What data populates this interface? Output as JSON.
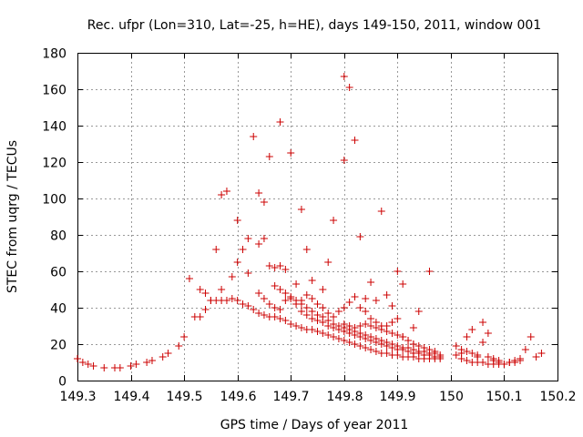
{
  "chart_data": {
    "type": "scatter",
    "title": "Rec. ufpr (Lon=310, Lat=-25, h=HE), days 149-150, 2011, window 001",
    "xlabel": "GPS time / Days of year 2011",
    "ylabel": "STEC from uqrg / TECUs",
    "xlim": [
      149.3,
      150.2
    ],
    "ylim": [
      0,
      180
    ],
    "xticks": [
      "149.3",
      "149.4",
      "149.5",
      "149.6",
      "149.7",
      "149.8",
      "149.9",
      "150",
      "150.1",
      "150.2"
    ],
    "yticks": [
      "0",
      "20",
      "40",
      "60",
      "80",
      "100",
      "120",
      "140",
      "160",
      "180"
    ],
    "grid": true,
    "marker": "+",
    "color": "#cc0000",
    "points": [
      [
        149.3,
        12
      ],
      [
        149.31,
        10
      ],
      [
        149.32,
        9
      ],
      [
        149.33,
        8
      ],
      [
        149.35,
        7
      ],
      [
        149.37,
        7
      ],
      [
        149.38,
        7
      ],
      [
        149.4,
        8
      ],
      [
        149.41,
        9
      ],
      [
        149.43,
        10
      ],
      [
        149.44,
        11
      ],
      [
        149.46,
        13
      ],
      [
        149.47,
        15
      ],
      [
        149.49,
        19
      ],
      [
        149.5,
        24
      ],
      [
        149.51,
        56
      ],
      [
        149.52,
        35
      ],
      [
        149.53,
        50
      ],
      [
        149.54,
        48
      ],
      [
        149.55,
        44
      ],
      [
        149.56,
        72
      ],
      [
        149.57,
        50
      ],
      [
        149.57,
        102
      ],
      [
        149.58,
        104
      ],
      [
        149.59,
        57
      ],
      [
        149.6,
        65
      ],
      [
        149.6,
        88
      ],
      [
        149.61,
        72
      ],
      [
        149.62,
        59
      ],
      [
        149.62,
        78
      ],
      [
        149.63,
        134
      ],
      [
        149.64,
        75
      ],
      [
        149.64,
        103
      ],
      [
        149.65,
        98
      ],
      [
        149.65,
        78
      ],
      [
        149.66,
        123
      ],
      [
        149.66,
        63
      ],
      [
        149.67,
        62
      ],
      [
        149.68,
        142
      ],
      [
        149.68,
        63
      ],
      [
        149.69,
        61
      ],
      [
        149.7,
        125
      ],
      [
        149.71,
        53
      ],
      [
        149.72,
        94
      ],
      [
        149.73,
        72
      ],
      [
        149.74,
        55
      ],
      [
        149.76,
        50
      ],
      [
        149.77,
        65
      ],
      [
        149.78,
        88
      ],
      [
        149.8,
        167
      ],
      [
        149.8,
        121
      ],
      [
        149.81,
        161
      ],
      [
        149.82,
        132
      ],
      [
        149.83,
        79
      ],
      [
        149.84,
        45
      ],
      [
        149.85,
        54
      ],
      [
        149.86,
        44
      ],
      [
        149.87,
        93
      ],
      [
        149.88,
        47
      ],
      [
        149.89,
        41
      ],
      [
        149.9,
        60
      ],
      [
        149.91,
        53
      ],
      [
        149.93,
        29
      ],
      [
        149.94,
        38
      ],
      [
        149.96,
        60
      ],
      [
        149.53,
        35
      ],
      [
        149.54,
        39
      ],
      [
        149.55,
        44
      ],
      [
        149.56,
        44
      ],
      [
        149.57,
        44
      ],
      [
        149.58,
        44
      ],
      [
        149.59,
        45
      ],
      [
        149.6,
        44
      ],
      [
        149.61,
        42
      ],
      [
        149.62,
        41
      ],
      [
        149.63,
        39
      ],
      [
        149.64,
        37
      ],
      [
        149.65,
        36
      ],
      [
        149.66,
        35
      ],
      [
        149.67,
        35
      ],
      [
        149.68,
        34
      ],
      [
        149.69,
        33
      ],
      [
        149.7,
        31
      ],
      [
        149.71,
        30
      ],
      [
        149.72,
        29
      ],
      [
        149.73,
        28
      ],
      [
        149.74,
        28
      ],
      [
        149.75,
        27
      ],
      [
        149.76,
        26
      ],
      [
        149.77,
        25
      ],
      [
        149.78,
        24
      ],
      [
        149.79,
        23
      ],
      [
        149.8,
        22
      ],
      [
        149.81,
        21
      ],
      [
        149.82,
        20
      ],
      [
        149.83,
        19
      ],
      [
        149.84,
        18
      ],
      [
        149.85,
        17
      ],
      [
        149.86,
        16
      ],
      [
        149.87,
        15
      ],
      [
        149.88,
        15
      ],
      [
        149.89,
        14
      ],
      [
        149.9,
        14
      ],
      [
        149.91,
        13
      ],
      [
        149.92,
        13
      ],
      [
        149.93,
        13
      ],
      [
        149.94,
        12
      ],
      [
        149.95,
        12
      ],
      [
        149.96,
        12
      ],
      [
        149.97,
        12
      ],
      [
        149.98,
        12
      ],
      [
        149.64,
        48
      ],
      [
        149.65,
        45
      ],
      [
        149.66,
        42
      ],
      [
        149.67,
        40
      ],
      [
        149.68,
        39
      ],
      [
        149.69,
        44
      ],
      [
        149.7,
        45
      ],
      [
        149.71,
        42
      ],
      [
        149.72,
        38
      ],
      [
        149.73,
        36
      ],
      [
        149.74,
        34
      ],
      [
        149.75,
        33
      ],
      [
        149.76,
        32
      ],
      [
        149.77,
        30
      ],
      [
        149.78,
        29
      ],
      [
        149.79,
        28
      ],
      [
        149.8,
        27
      ],
      [
        149.81,
        26
      ],
      [
        149.82,
        25
      ],
      [
        149.83,
        24
      ],
      [
        149.84,
        23
      ],
      [
        149.85,
        22
      ],
      [
        149.86,
        21
      ],
      [
        149.87,
        20
      ],
      [
        149.88,
        19
      ],
      [
        149.89,
        18
      ],
      [
        149.9,
        17
      ],
      [
        149.91,
        17
      ],
      [
        149.92,
        16
      ],
      [
        149.93,
        15
      ],
      [
        149.94,
        15
      ],
      [
        149.95,
        14
      ],
      [
        149.96,
        14
      ],
      [
        149.97,
        13
      ],
      [
        149.98,
        13
      ],
      [
        149.67,
        52
      ],
      [
        149.68,
        50
      ],
      [
        149.69,
        48
      ],
      [
        149.7,
        46
      ],
      [
        149.71,
        44
      ],
      [
        149.72,
        42
      ],
      [
        149.73,
        40
      ],
      [
        149.74,
        38
      ],
      [
        149.75,
        36
      ],
      [
        149.76,
        35
      ],
      [
        149.77,
        33
      ],
      [
        149.78,
        31
      ],
      [
        149.79,
        30
      ],
      [
        149.8,
        29
      ],
      [
        149.81,
        28
      ],
      [
        149.82,
        27
      ],
      [
        149.83,
        26
      ],
      [
        149.84,
        25
      ],
      [
        149.85,
        24
      ],
      [
        149.86,
        23
      ],
      [
        149.87,
        22
      ],
      [
        149.88,
        21
      ],
      [
        149.89,
        20
      ],
      [
        149.9,
        19
      ],
      [
        149.91,
        18
      ],
      [
        149.92,
        18
      ],
      [
        149.93,
        17
      ],
      [
        149.94,
        16
      ],
      [
        149.95,
        16
      ],
      [
        149.96,
        15
      ],
      [
        149.97,
        15
      ],
      [
        149.98,
        14
      ],
      [
        149.72,
        44
      ],
      [
        149.73,
        47
      ],
      [
        149.74,
        45
      ],
      [
        149.75,
        42
      ],
      [
        149.76,
        40
      ],
      [
        149.77,
        37
      ],
      [
        149.78,
        35
      ],
      [
        149.79,
        38
      ],
      [
        149.8,
        40
      ],
      [
        149.81,
        43
      ],
      [
        149.82,
        46
      ],
      [
        149.83,
        40
      ],
      [
        149.84,
        38
      ],
      [
        149.85,
        34
      ],
      [
        149.86,
        32
      ],
      [
        149.87,
        30
      ],
      [
        149.88,
        30
      ],
      [
        149.89,
        32
      ],
      [
        149.9,
        34
      ],
      [
        149.91,
        24
      ],
      [
        149.92,
        22
      ],
      [
        149.93,
        20
      ],
      [
        149.94,
        19
      ],
      [
        149.95,
        18
      ],
      [
        149.96,
        17
      ],
      [
        149.97,
        16
      ],
      [
        149.8,
        31
      ],
      [
        149.81,
        30
      ],
      [
        149.82,
        29
      ],
      [
        149.83,
        30
      ],
      [
        149.84,
        31
      ],
      [
        149.85,
        30
      ],
      [
        149.86,
        29
      ],
      [
        149.87,
        28
      ],
      [
        149.88,
        27
      ],
      [
        149.89,
        26
      ],
      [
        149.9,
        25
      ],
      [
        149.91,
        24
      ],
      [
        149.92,
        22
      ],
      [
        149.93,
        20
      ],
      [
        150.01,
        19
      ],
      [
        150.02,
        15
      ],
      [
        150.03,
        24
      ],
      [
        150.04,
        28
      ],
      [
        150.05,
        13
      ],
      [
        150.06,
        32
      ],
      [
        150.07,
        26
      ],
      [
        150.08,
        11
      ],
      [
        150.09,
        10
      ],
      [
        150.1,
        9
      ],
      [
        150.11,
        10
      ],
      [
        150.12,
        11
      ],
      [
        150.13,
        12
      ],
      [
        150.14,
        17
      ],
      [
        150.15,
        24
      ],
      [
        150.16,
        13
      ],
      [
        150.17,
        15
      ],
      [
        150.01,
        14
      ],
      [
        150.02,
        12
      ],
      [
        150.03,
        11
      ],
      [
        150.04,
        10
      ],
      [
        150.05,
        10
      ],
      [
        150.06,
        10
      ],
      [
        150.07,
        9
      ],
      [
        150.08,
        9
      ],
      [
        150.09,
        9
      ],
      [
        150.1,
        9
      ],
      [
        150.11,
        10
      ],
      [
        150.12,
        10
      ],
      [
        150.13,
        11
      ],
      [
        150.02,
        17
      ],
      [
        150.03,
        16
      ],
      [
        150.04,
        15
      ],
      [
        150.05,
        14
      ],
      [
        150.06,
        21
      ],
      [
        150.07,
        13
      ],
      [
        150.08,
        12
      ],
      [
        150.09,
        11
      ]
    ]
  }
}
